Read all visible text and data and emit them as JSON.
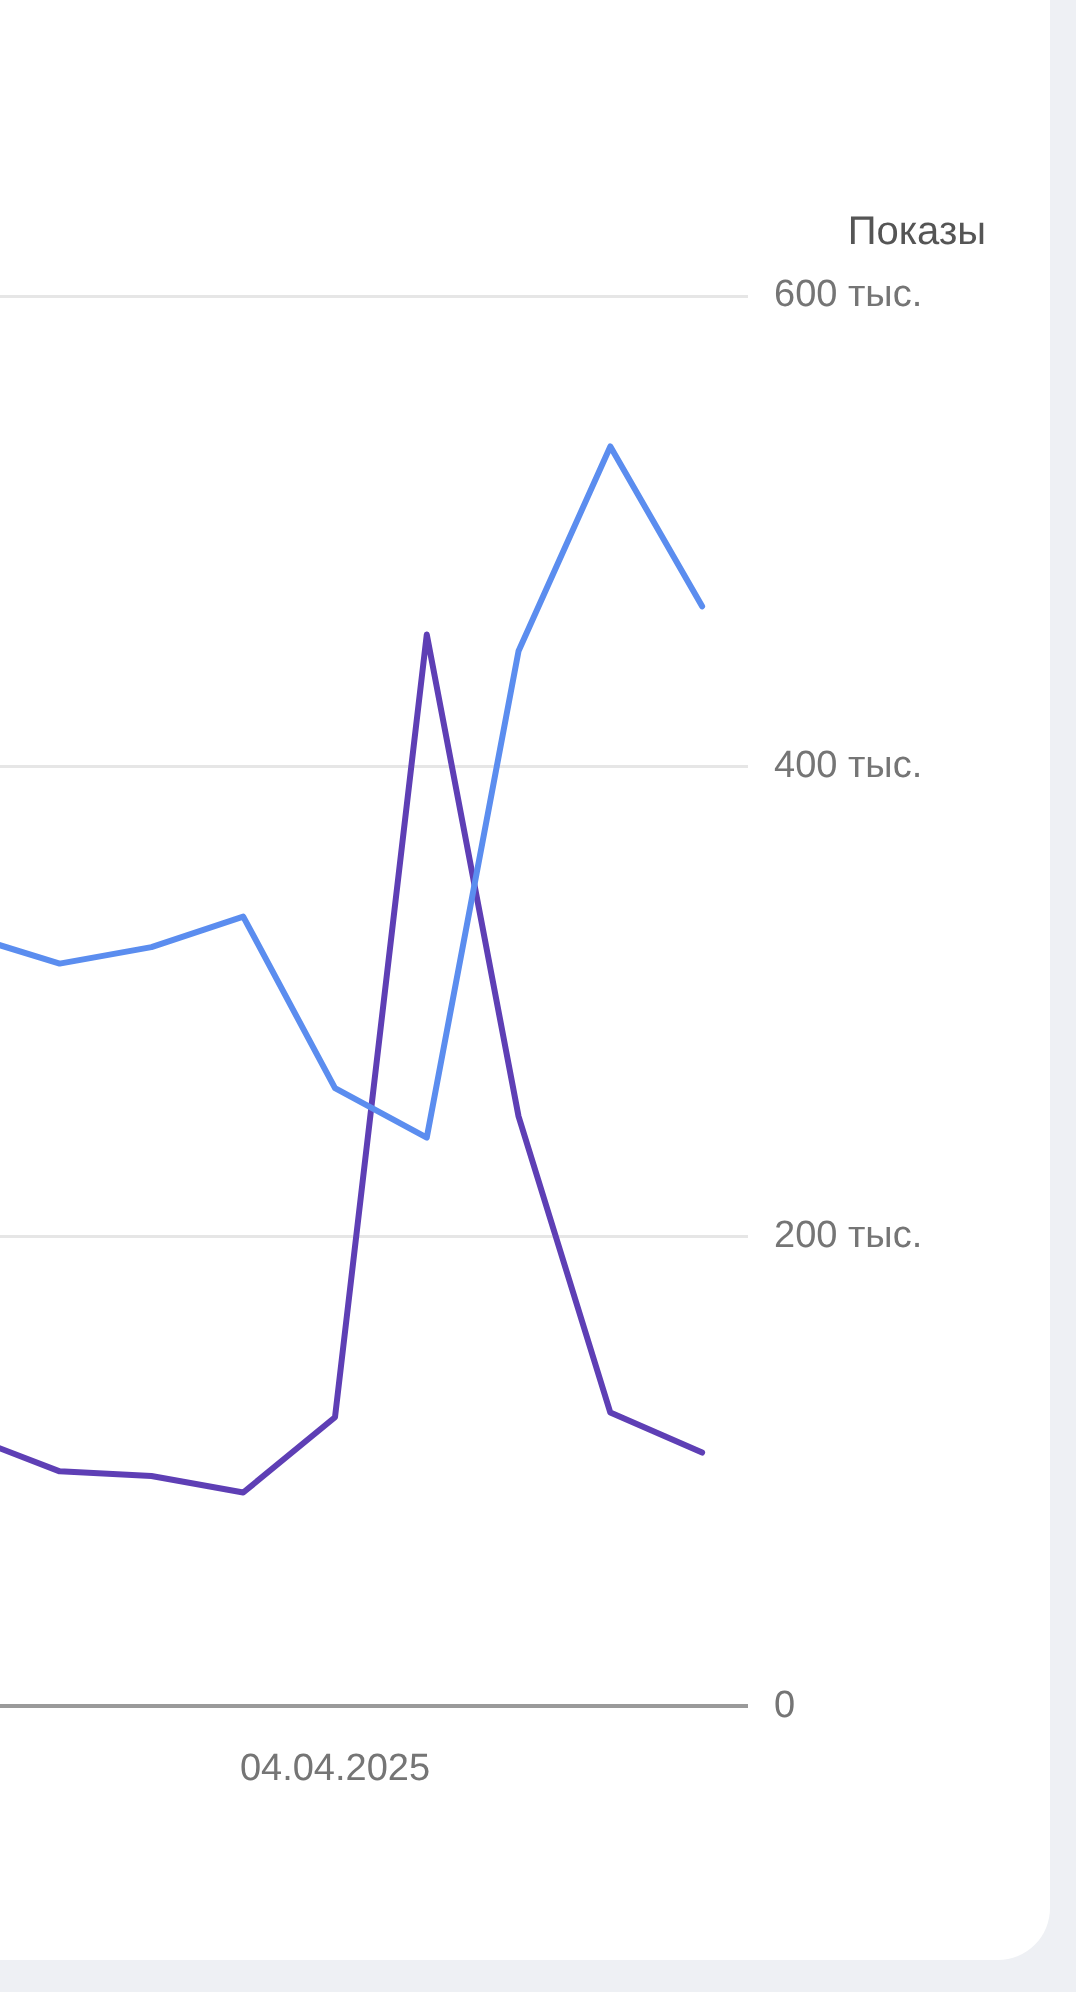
{
  "chart_data": {
    "type": "line",
    "ylabel": "Показы",
    "categories": [
      null,
      null,
      null,
      null,
      "04.04.2025",
      null,
      null,
      null,
      null
    ],
    "series": [
      {
        "color": "#5b8def",
        "values": [
          328,
          316,
          323,
          336,
          263,
          242,
          449,
          536,
          468
        ]
      },
      {
        "color": "#5e3fb5",
        "values": [
          115,
          100,
          98,
          91,
          123,
          456,
          251,
          125,
          108
        ]
      }
    ],
    "ylim": [
      0,
      600
    ],
    "yticks": [
      {
        "value": 0,
        "label": "0"
      },
      {
        "value": 200,
        "label": "200 тыс."
      },
      {
        "value": 400,
        "label": "400 тыс."
      },
      {
        "value": 600,
        "label": "600 тыс."
      }
    ],
    "grid": "y",
    "legend": false,
    "marker": "none",
    "line_style": "solid"
  }
}
